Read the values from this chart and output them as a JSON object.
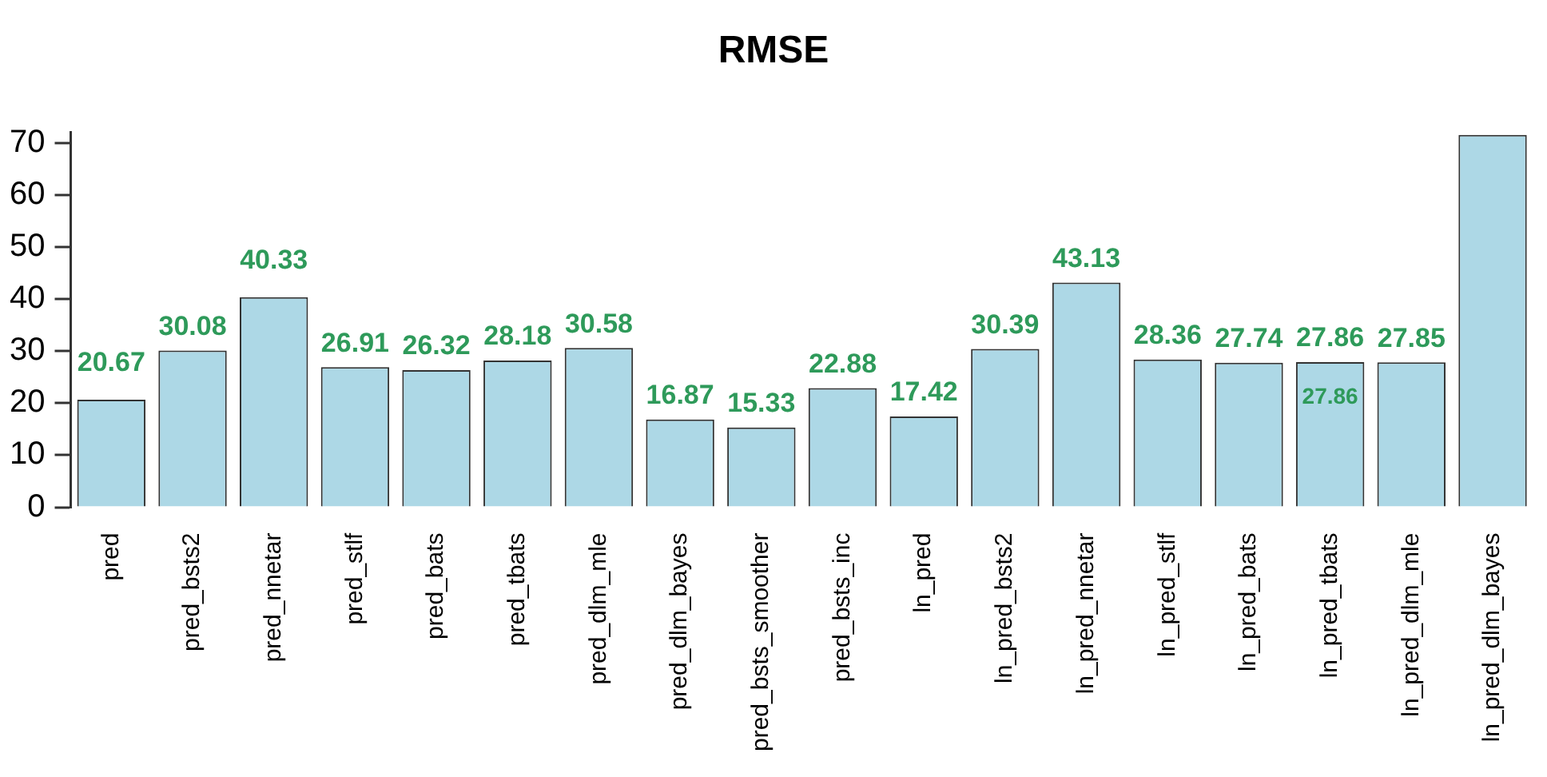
{
  "chart_data": {
    "type": "bar",
    "title": "RMSE",
    "categories": [
      "pred",
      "pred_bsts2",
      "pred_nnetar",
      "pred_stlf",
      "pred_bats",
      "pred_tbats",
      "pred_dlm_mle",
      "pred_dlm_bayes",
      "pred_bsts_smoother",
      "pred_bsts_inc",
      "ln_pred",
      "ln_pred_bsts2",
      "ln_pred_nnetar",
      "ln_pred_stlf",
      "ln_pred_bats",
      "ln_pred_tbats",
      "ln_pred_dlm_mle",
      "ln_pred_dlm_bayes"
    ],
    "values": [
      20.67,
      30.08,
      40.33,
      26.91,
      26.32,
      28.18,
      30.58,
      16.87,
      15.33,
      22.88,
      17.42,
      30.39,
      43.13,
      28.36,
      27.74,
      27.86,
      27.85,
      71.5
    ],
    "value_labels": [
      "20.67",
      "30.08",
      "40.33",
      "26.91",
      "26.32",
      "28.18",
      "30.58",
      "16.87",
      "15.33",
      "22.88",
      "17.42",
      "30.39",
      "43.13",
      "28.36",
      "27.74",
      "27.86",
      "27.85",
      null
    ],
    "color": "#add8e6",
    "ylim": [
      0,
      72
    ],
    "yticks": [
      0,
      10,
      20,
      30,
      40,
      50,
      60,
      70
    ],
    "grid": false,
    "legend": false,
    "annotations": [
      "27.86"
    ]
  }
}
